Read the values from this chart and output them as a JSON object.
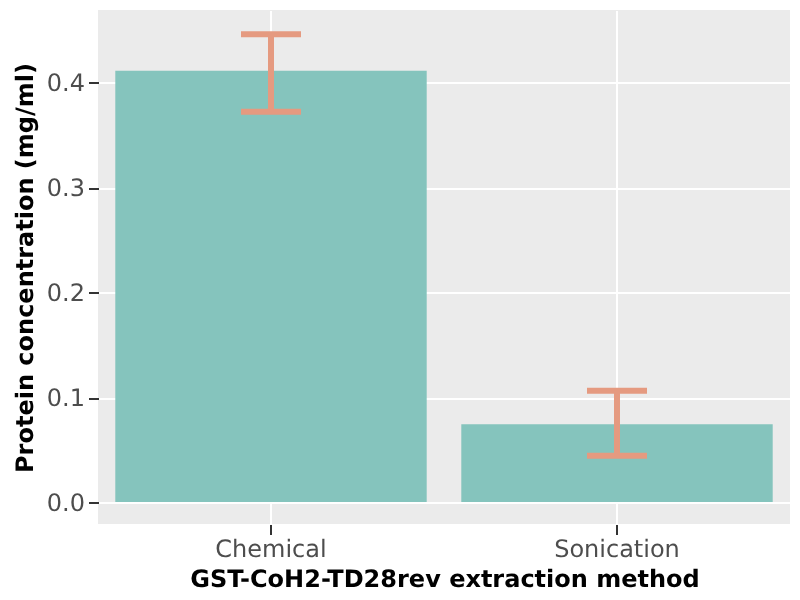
{
  "chart_data": {
    "type": "bar",
    "xlabel": "GST-CoH2-TD28rev extraction method",
    "ylabel": "Protein concentration (mg/ml)",
    "categories": [
      "Chemical",
      "Sonication"
    ],
    "series": [
      {
        "color": "#85c4bd",
        "values": [
          0.411,
          0.074
        ],
        "errors": [
          [
            0.372,
            0.446
          ],
          [
            0.044,
            0.106
          ]
        ]
      }
    ],
    "ylim": [
      -0.021,
      0.469
    ],
    "yticks": [
      {
        "value": 0,
        "label": "0.0"
      },
      0.1,
      0.2,
      0.3,
      0.4
    ],
    "grid": true
  }
}
